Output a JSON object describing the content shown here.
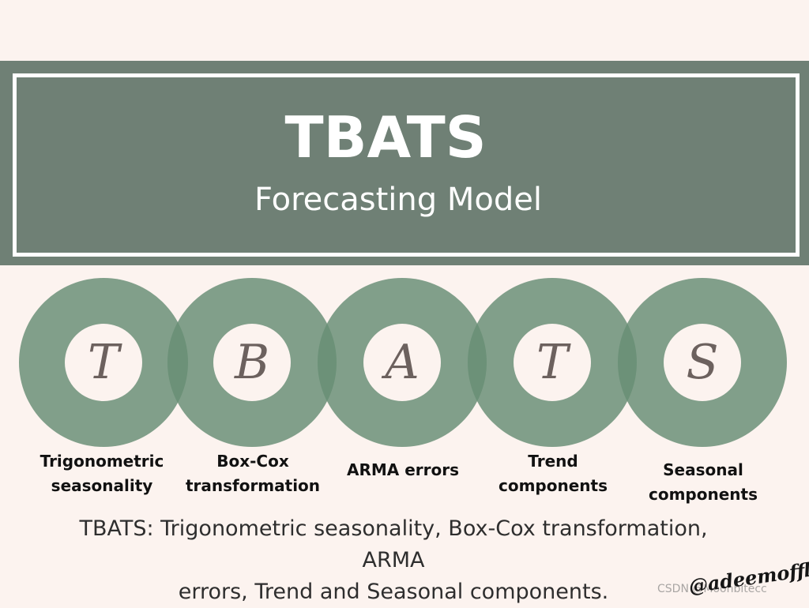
{
  "header": {
    "title": "TBATS",
    "subtitle": "Forecasting Model"
  },
  "components": [
    {
      "letter": "T",
      "label_line1": "Trigonometric",
      "label_line2": "seasonality"
    },
    {
      "letter": "B",
      "label_line1": "Box-Cox",
      "label_line2": "transformation"
    },
    {
      "letter": "A",
      "label_line1": "ARMA errors",
      "label_line2": ""
    },
    {
      "letter": "T",
      "label_line1": "Trend",
      "label_line2": "components"
    },
    {
      "letter": "S",
      "label_line1": "Seasonal",
      "label_line2": "components"
    }
  ],
  "caption": {
    "line1": "TBATS: Trigonometric seasonality, Box-Cox transformation, ARMA",
    "line2": "errors, Trend and Seasonal components."
  },
  "watermark": "CSDN @Moonbitecc",
  "signature": "@adeemoffl",
  "colors": {
    "background": "#fcf3ef",
    "banner": "#6f8075",
    "ring": "#688e75",
    "letter": "#6c615e"
  }
}
